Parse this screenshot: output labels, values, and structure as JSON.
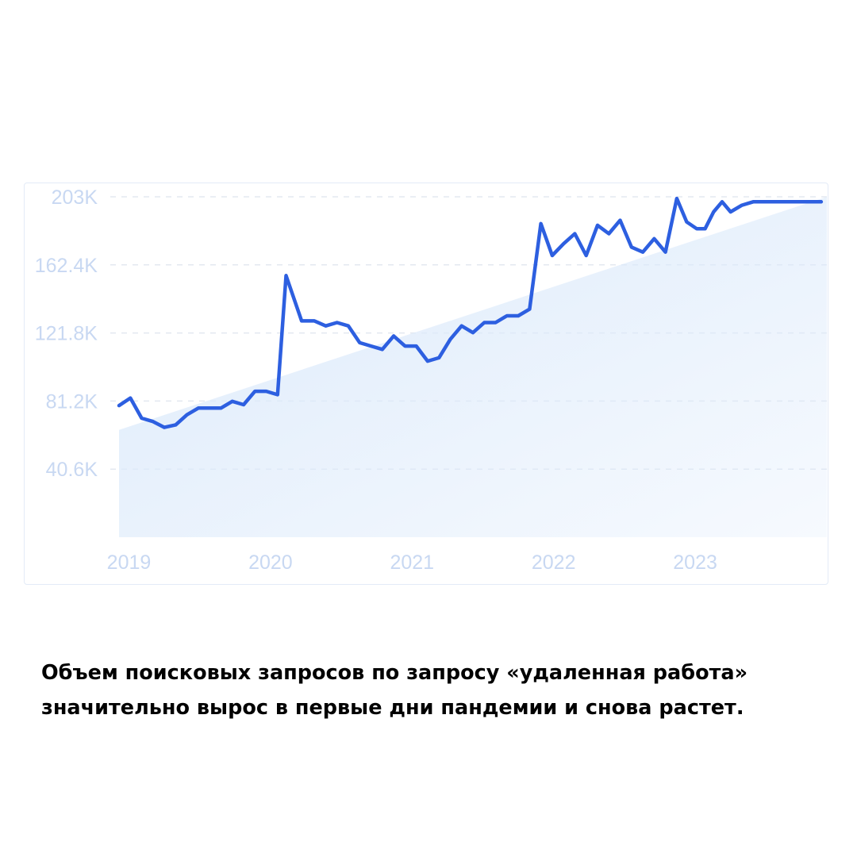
{
  "chart_data": {
    "type": "line",
    "yticks": [
      {
        "value": 203,
        "label": "203K"
      },
      {
        "value": 162.4,
        "label": "162.4K"
      },
      {
        "value": 121.8,
        "label": "121.8K"
      },
      {
        "value": 81.2,
        "label": "81.2K"
      },
      {
        "value": 40.6,
        "label": "40.6K"
      }
    ],
    "xticks": [
      {
        "value": 2019,
        "label": "2019"
      },
      {
        "value": 2020,
        "label": "2020"
      },
      {
        "value": 2021,
        "label": "2021"
      },
      {
        "value": 2022,
        "label": "2022"
      },
      {
        "value": 2023,
        "label": "2023"
      }
    ],
    "xlim": [
      2018.93,
      2023.93
    ],
    "ylim": [
      0,
      203
    ],
    "grid": true,
    "trend_area": {
      "start": 64,
      "end": 203,
      "fill": "#dceafb"
    },
    "series": [
      {
        "color": "#2d5fe0",
        "x": [
          2018.93,
          2019.01,
          2019.09,
          2019.17,
          2019.25,
          2019.33,
          2019.41,
          2019.49,
          2019.57,
          2019.65,
          2019.73,
          2019.81,
          2019.89,
          2019.97,
          2020.05,
          2020.11,
          2020.22,
          2020.31,
          2020.39,
          2020.47,
          2020.55,
          2020.63,
          2020.71,
          2020.79,
          2020.87,
          2020.95,
          2021.03,
          2021.11,
          2021.19,
          2021.27,
          2021.35,
          2021.43,
          2021.51,
          2021.59,
          2021.67,
          2021.75,
          2021.83,
          2021.91,
          2021.99,
          2022.07,
          2022.15,
          2022.23,
          2022.31,
          2022.39,
          2022.47,
          2022.55,
          2022.63,
          2022.71,
          2022.79,
          2022.87,
          2022.94,
          2023.01,
          2023.07,
          2023.13,
          2023.19,
          2023.25,
          2023.33,
          2023.41,
          2023.49,
          2023.57,
          2023.65,
          2023.73,
          2023.81,
          2023.89
        ],
        "values": [
          78.5,
          83,
          71,
          69,
          65.5,
          67,
          73,
          77,
          77,
          77,
          81,
          79,
          87,
          87,
          85,
          156,
          129,
          129,
          126,
          128,
          126,
          116,
          114,
          112,
          120,
          114,
          114,
          105,
          107,
          118,
          126,
          122,
          128,
          128,
          132,
          132,
          136,
          187,
          168,
          175,
          181,
          168,
          186,
          181,
          189,
          173,
          170,
          178,
          170,
          202,
          188,
          184,
          184,
          194,
          200,
          194,
          198,
          200,
          200,
          200,
          200,
          200,
          200,
          200
        ]
      }
    ]
  },
  "caption": {
    "line1": "Объем поисковых запросов по запросу «удаленная работа»",
    "line2": "значительно вырос в первые дни пандемии и снова растет."
  }
}
